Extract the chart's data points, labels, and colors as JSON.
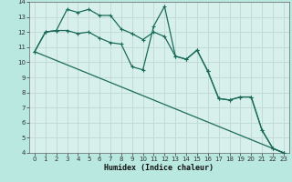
{
  "xlabel": "Humidex (Indice chaleur)",
  "background_color": "#b8e8e0",
  "plot_bg_color": "#d8f0ec",
  "grid_color": "#c0d8d4",
  "line_color": "#1a6b5a",
  "xlim": [
    -0.5,
    23.5
  ],
  "ylim": [
    4,
    14
  ],
  "xticks": [
    0,
    1,
    2,
    3,
    4,
    5,
    6,
    7,
    8,
    9,
    10,
    11,
    12,
    13,
    14,
    15,
    16,
    17,
    18,
    19,
    20,
    21,
    22,
    23
  ],
  "yticks": [
    4,
    5,
    6,
    7,
    8,
    9,
    10,
    11,
    12,
    13,
    14
  ],
  "line1_x": [
    0,
    1,
    2,
    3,
    4,
    5,
    6,
    7,
    8,
    9,
    10,
    11,
    12,
    13,
    14,
    15,
    16,
    17,
    18,
    19,
    20,
    21,
    22,
    23
  ],
  "line1_y": [
    10.7,
    12.0,
    12.1,
    12.1,
    11.9,
    12.0,
    11.6,
    11.3,
    11.2,
    9.7,
    9.5,
    12.4,
    13.7,
    10.4,
    10.2,
    10.8,
    9.4,
    7.6,
    7.5,
    7.7,
    7.7,
    5.5,
    4.3,
    4.0
  ],
  "line2_x": [
    0,
    1,
    2,
    3,
    4,
    5,
    6,
    7,
    8,
    9,
    10,
    11,
    12,
    13,
    14,
    15,
    16,
    17,
    18,
    19,
    20,
    21,
    22,
    23
  ],
  "line2_y": [
    10.7,
    12.0,
    12.1,
    13.5,
    13.3,
    13.5,
    13.1,
    13.1,
    12.2,
    11.9,
    11.5,
    12.0,
    11.7,
    10.4,
    10.2,
    10.8,
    9.4,
    7.6,
    7.5,
    7.7,
    7.7,
    5.5,
    4.3,
    4.0
  ],
  "line3_x": [
    0,
    23
  ],
  "line3_y": [
    10.7,
    4.0
  ],
  "linewidth": 0.9,
  "markersize": 3,
  "tick_fontsize": 5,
  "xlabel_fontsize": 6
}
